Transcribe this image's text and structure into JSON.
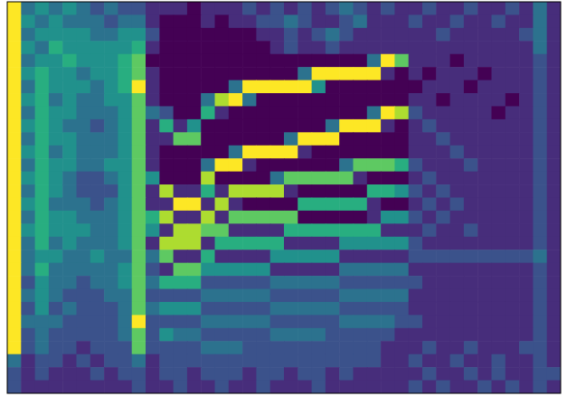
{
  "chart_data": {
    "type": "heatmap",
    "tick_labels": false,
    "cells": [
      [
        9,
        4,
        5,
        4,
        5,
        4,
        3,
        4,
        3,
        3,
        2,
        2,
        2,
        1,
        2,
        2,
        2,
        3,
        2,
        3,
        2,
        3,
        2,
        3,
        4,
        3,
        2,
        3,
        2,
        2,
        3,
        2,
        2,
        3,
        2,
        2,
        3,
        2,
        4,
        2
      ],
      [
        9,
        5,
        4,
        5,
        4,
        4,
        4,
        3,
        4,
        4,
        2,
        1,
        1,
        1,
        2,
        1,
        2,
        2,
        3,
        3,
        4,
        3,
        2,
        2,
        3,
        4,
        2,
        2,
        2,
        3,
        2,
        2,
        3,
        2,
        2,
        3,
        2,
        2,
        4,
        2
      ],
      [
        9,
        4,
        5,
        5,
        5,
        5,
        4,
        4,
        5,
        5,
        3,
        1,
        1,
        1,
        1,
        1,
        1,
        1,
        2,
        2,
        3,
        2,
        3,
        4,
        3,
        2,
        2,
        2,
        2,
        2,
        2,
        3,
        2,
        2,
        2,
        2,
        2,
        3,
        4,
        2
      ],
      [
        9,
        5,
        4,
        6,
        5,
        5,
        5,
        5,
        5,
        6,
        2,
        1,
        1,
        1,
        1,
        1,
        1,
        1,
        1,
        2,
        3,
        2,
        2,
        3,
        2,
        2,
        2,
        2,
        2,
        2,
        2,
        2,
        2,
        2,
        2,
        2,
        2,
        2,
        4,
        2
      ],
      [
        9,
        4,
        5,
        5,
        6,
        5,
        5,
        5,
        6,
        7,
        1,
        1,
        1,
        1,
        1,
        1,
        1,
        1,
        1,
        1,
        1,
        1,
        1,
        1,
        1,
        1,
        4,
        9,
        7,
        2,
        2,
        2,
        1,
        2,
        2,
        2,
        2,
        2,
        3,
        2
      ],
      [
        9,
        5,
        6,
        5,
        5,
        4,
        5,
        5,
        6,
        7,
        2,
        1,
        1,
        1,
        1,
        1,
        1,
        1,
        1,
        1,
        1,
        4,
        9,
        9,
        9,
        9,
        9,
        2,
        1,
        2,
        1,
        2,
        2,
        2,
        1,
        2,
        2,
        2,
        3,
        2
      ],
      [
        9,
        4,
        6,
        5,
        5,
        5,
        4,
        5,
        6,
        9,
        2,
        1,
        1,
        1,
        1,
        1,
        4,
        9,
        9,
        9,
        9,
        9,
        5,
        1,
        1,
        1,
        1,
        1,
        1,
        1,
        2,
        2,
        2,
        1,
        2,
        2,
        2,
        2,
        3,
        2
      ],
      [
        9,
        5,
        6,
        4,
        5,
        4,
        4,
        5,
        5,
        7,
        2,
        1,
        1,
        1,
        4,
        8,
        9,
        4,
        1,
        1,
        1,
        1,
        1,
        1,
        1,
        1,
        1,
        1,
        1,
        2,
        2,
        1,
        2,
        2,
        2,
        2,
        1,
        2,
        3,
        2
      ],
      [
        9,
        4,
        6,
        5,
        5,
        4,
        4,
        4,
        5,
        7,
        4,
        3,
        1,
        1,
        6,
        2,
        1,
        1,
        1,
        1,
        1,
        1,
        1,
        1,
        1,
        1,
        4,
        9,
        8,
        3,
        2,
        2,
        2,
        2,
        2,
        1,
        2,
        2,
        3,
        2
      ],
      [
        9,
        5,
        6,
        5,
        4,
        4,
        3,
        4,
        5,
        7,
        2,
        6,
        2,
        5,
        1,
        1,
        1,
        1,
        1,
        1,
        1,
        1,
        1,
        4,
        9,
        9,
        9,
        2,
        1,
        2,
        3,
        2,
        2,
        2,
        2,
        2,
        2,
        2,
        3,
        2
      ],
      [
        9,
        4,
        6,
        5,
        5,
        4,
        4,
        4,
        5,
        7,
        2,
        2,
        7,
        7,
        1,
        1,
        1,
        1,
        1,
        1,
        4,
        9,
        9,
        9,
        1,
        1,
        1,
        1,
        1,
        2,
        2,
        3,
        2,
        2,
        2,
        2,
        2,
        2,
        3,
        2
      ],
      [
        9,
        5,
        6,
        4,
        5,
        4,
        4,
        4,
        5,
        7,
        2,
        1,
        1,
        1,
        1,
        1,
        4,
        9,
        9,
        9,
        9,
        2,
        1,
        1,
        1,
        1,
        1,
        1,
        1,
        2,
        2,
        2,
        3,
        2,
        2,
        2,
        2,
        2,
        3,
        2
      ],
      [
        9,
        4,
        6,
        5,
        5,
        4,
        4,
        5,
        5,
        7,
        2,
        1,
        1,
        1,
        4,
        9,
        9,
        2,
        1,
        1,
        1,
        1,
        1,
        1,
        4,
        7,
        7,
        7,
        6,
        3,
        2,
        2,
        2,
        3,
        2,
        2,
        2,
        2,
        3,
        2
      ],
      [
        9,
        5,
        6,
        5,
        4,
        3,
        3,
        4,
        5,
        7,
        5,
        1,
        1,
        1,
        8,
        1,
        1,
        1,
        1,
        4,
        7,
        7,
        7,
        7,
        7,
        2,
        1,
        1,
        1,
        2,
        3,
        2,
        2,
        2,
        2,
        2,
        2,
        2,
        3,
        2
      ],
      [
        9,
        4,
        6,
        5,
        4,
        3,
        3,
        3,
        5,
        7,
        2,
        8,
        2,
        2,
        6,
        2,
        8,
        8,
        8,
        8,
        2,
        1,
        1,
        1,
        1,
        1,
        6,
        6,
        5,
        3,
        2,
        3,
        2,
        2,
        2,
        2,
        2,
        2,
        3,
        2
      ],
      [
        9,
        5,
        6,
        4,
        4,
        4,
        3,
        4,
        5,
        7,
        2,
        2,
        9,
        9,
        2,
        8,
        2,
        1,
        1,
        1,
        1,
        6,
        6,
        6,
        6,
        6,
        2,
        1,
        1,
        2,
        3,
        2,
        3,
        2,
        2,
        2,
        2,
        2,
        3,
        2
      ],
      [
        9,
        4,
        6,
        5,
        5,
        4,
        4,
        4,
        5,
        7,
        6,
        8,
        2,
        2,
        8,
        2,
        7,
        7,
        7,
        7,
        7,
        1,
        1,
        1,
        1,
        1,
        2,
        5,
        5,
        3,
        2,
        3,
        2,
        2,
        2,
        2,
        2,
        2,
        3,
        2
      ],
      [
        9,
        5,
        6,
        5,
        5,
        5,
        4,
        4,
        5,
        7,
        5,
        2,
        8,
        8,
        7,
        7,
        2,
        2,
        2,
        2,
        6,
        6,
        6,
        6,
        6,
        6,
        6,
        2,
        2,
        2,
        3,
        2,
        2,
        3,
        2,
        2,
        2,
        2,
        3,
        2
      ],
      [
        9,
        4,
        6,
        4,
        5,
        4,
        4,
        4,
        5,
        7,
        2,
        8,
        8,
        8,
        2,
        6,
        6,
        6,
        6,
        6,
        2,
        2,
        2,
        2,
        5,
        5,
        5,
        5,
        5,
        3,
        2,
        2,
        2,
        2,
        2,
        2,
        2,
        2,
        3,
        2
      ],
      [
        9,
        4,
        5,
        5,
        4,
        4,
        5,
        4,
        4,
        7,
        4,
        7,
        2,
        2,
        6,
        2,
        2,
        2,
        2,
        5,
        5,
        5,
        5,
        5,
        2,
        2,
        2,
        2,
        2,
        3,
        3,
        3,
        3,
        3,
        3,
        3,
        3,
        3,
        4,
        2
      ],
      [
        9,
        4,
        6,
        4,
        4,
        4,
        4,
        4,
        5,
        7,
        3,
        2,
        7,
        7,
        5,
        5,
        5,
        5,
        5,
        2,
        2,
        2,
        2,
        2,
        4,
        4,
        4,
        4,
        4,
        2,
        2,
        2,
        2,
        2,
        2,
        2,
        2,
        2,
        3,
        2
      ],
      [
        9,
        3,
        5,
        4,
        4,
        3,
        4,
        4,
        5,
        7,
        4,
        6,
        6,
        6,
        3,
        3,
        3,
        3,
        3,
        4,
        4,
        4,
        4,
        4,
        3,
        3,
        3,
        3,
        3,
        3,
        2,
        2,
        2,
        2,
        2,
        2,
        2,
        2,
        3,
        2
      ],
      [
        9,
        4,
        5,
        4,
        3,
        3,
        3,
        4,
        4,
        7,
        3,
        3,
        3,
        3,
        4,
        4,
        4,
        4,
        4,
        3,
        3,
        3,
        3,
        3,
        4,
        4,
        4,
        4,
        4,
        2,
        2,
        2,
        2,
        2,
        2,
        2,
        2,
        2,
        3,
        2
      ],
      [
        9,
        3,
        5,
        3,
        4,
        3,
        3,
        3,
        4,
        7,
        4,
        5,
        5,
        5,
        3,
        3,
        3,
        3,
        3,
        4,
        4,
        4,
        4,
        4,
        3,
        3,
        3,
        3,
        3,
        2,
        2,
        2,
        2,
        2,
        2,
        2,
        2,
        2,
        3,
        2
      ],
      [
        9,
        4,
        4,
        4,
        3,
        3,
        3,
        3,
        4,
        9,
        3,
        3,
        3,
        3,
        4,
        4,
        4,
        4,
        4,
        3,
        3,
        3,
        3,
        3,
        4,
        4,
        4,
        4,
        3,
        3,
        2,
        2,
        2,
        2,
        2,
        2,
        2,
        2,
        3,
        2
      ],
      [
        9,
        3,
        4,
        3,
        3,
        3,
        3,
        3,
        4,
        7,
        3,
        5,
        4,
        4,
        3,
        3,
        3,
        3,
        3,
        4,
        4,
        4,
        4,
        3,
        3,
        3,
        3,
        3,
        2,
        2,
        2,
        2,
        2,
        2,
        2,
        2,
        2,
        2,
        3,
        2
      ],
      [
        9,
        3,
        4,
        3,
        3,
        2,
        3,
        3,
        3,
        7,
        3,
        3,
        3,
        3,
        4,
        4,
        4,
        3,
        3,
        3,
        3,
        3,
        3,
        3,
        3,
        3,
        3,
        2,
        2,
        2,
        3,
        2,
        2,
        3,
        2,
        2,
        2,
        3,
        3,
        2
      ],
      [
        4,
        2,
        3,
        3,
        2,
        3,
        2,
        3,
        3,
        4,
        2,
        3,
        3,
        3,
        3,
        3,
        3,
        3,
        3,
        3,
        3,
        3,
        3,
        3,
        3,
        3,
        3,
        2,
        2,
        3,
        2,
        2,
        3,
        2,
        2,
        3,
        2,
        2,
        3,
        2
      ],
      [
        3,
        2,
        3,
        2,
        2,
        2,
        3,
        2,
        3,
        3,
        2,
        3,
        3,
        2,
        3,
        3,
        3,
        2,
        3,
        3,
        2,
        3,
        3,
        2,
        3,
        2,
        2,
        2,
        2,
        2,
        3,
        2,
        2,
        3,
        2,
        3,
        2,
        2,
        3,
        3
      ],
      [
        3,
        2,
        2,
        2,
        2,
        2,
        2,
        2,
        2,
        3,
        2,
        2,
        3,
        2,
        2,
        3,
        2,
        2,
        3,
        2,
        2,
        2,
        3,
        2,
        2,
        2,
        2,
        2,
        2,
        3,
        2,
        3,
        2,
        2,
        3,
        2,
        3,
        2,
        3,
        2
      ]
    ]
  }
}
